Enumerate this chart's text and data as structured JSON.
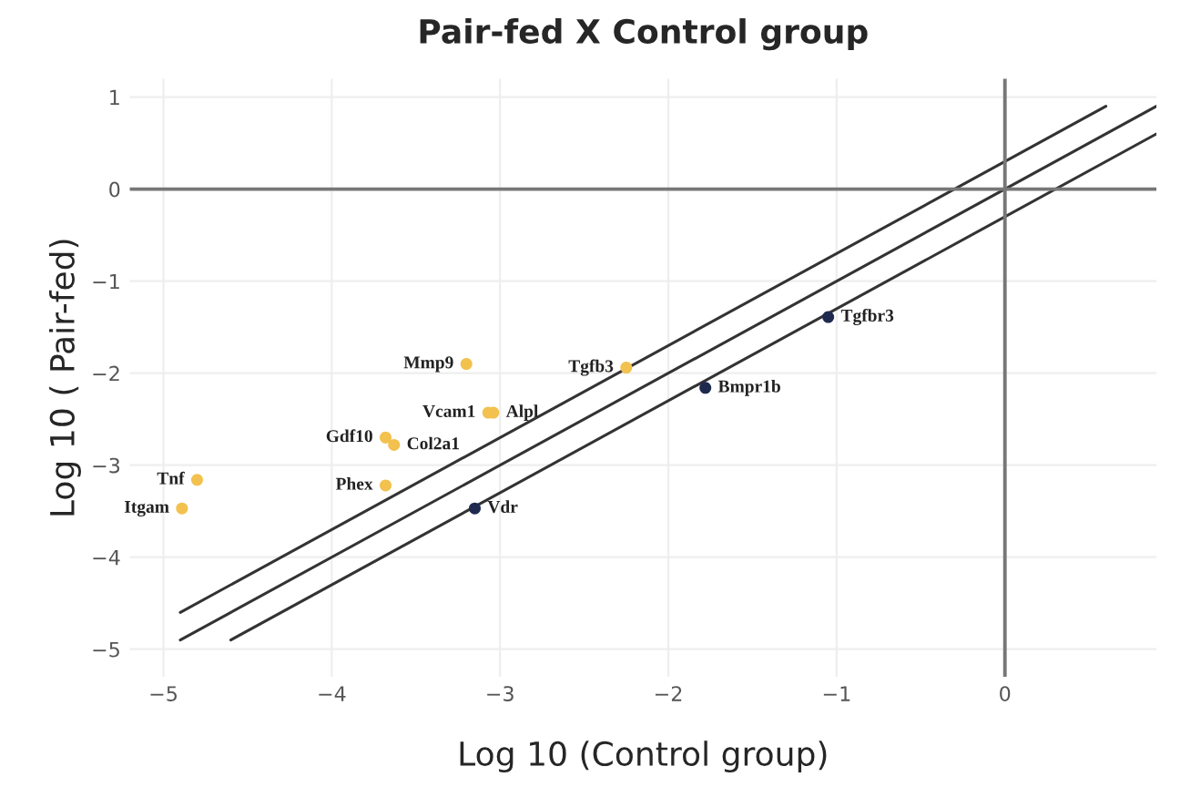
{
  "chart_data": {
    "type": "scatter",
    "title": "Pair-fed X Control group",
    "xlabel": "Log 10 (Control group)",
    "ylabel": "Log 10 ( Pair-fed)",
    "xlim": [
      -5.2,
      0.9
    ],
    "ylim": [
      -5.3,
      1.2
    ],
    "xticks": [
      -5,
      -4,
      -3,
      -2,
      -1,
      0
    ],
    "yticks": [
      -5,
      -4,
      -3,
      -2,
      -1,
      0,
      1
    ],
    "grid": true,
    "legend": false,
    "series": [
      {
        "color": "#f2c14e",
        "marker": "circle",
        "x": [
          -4.8,
          -4.89,
          -3.2,
          -2.25,
          -3.07,
          -3.04,
          -3.68,
          -3.63,
          -3.68
        ],
        "values": [
          -3.16,
          -3.47,
          -1.9,
          -1.94,
          -2.43,
          -2.43,
          -2.7,
          -2.78,
          -3.22
        ]
      },
      {
        "color": "#1f2a4f",
        "marker": "circle",
        "x": [
          -3.15,
          -1.78,
          -1.05
        ],
        "values": [
          -3.47,
          -2.16,
          -1.39
        ]
      },
      {
        "type": "line",
        "color": "#333333",
        "x": [
          -4.9,
          0.6
        ],
        "values": [
          -4.6,
          0.9
        ]
      },
      {
        "type": "line",
        "color": "#333333",
        "x": [
          -4.9,
          0.9
        ],
        "values": [
          -4.9,
          0.9
        ]
      },
      {
        "type": "line",
        "color": "#333333",
        "x": [
          -4.6,
          0.9
        ],
        "values": [
          -4.9,
          0.6
        ]
      }
    ],
    "annotations": [
      {
        "text": "Tnf",
        "x": -4.8,
        "y": -3.16
      },
      {
        "text": "Itgam",
        "x": -4.89,
        "y": -3.47
      },
      {
        "text": "Mmp9",
        "x": -3.2,
        "y": -1.9
      },
      {
        "text": "Tgfb3",
        "x": -2.25,
        "y": -1.94
      },
      {
        "text": "Vcam1",
        "x": -3.07,
        "y": -2.43
      },
      {
        "text": "Alpl",
        "x": -3.04,
        "y": -2.43
      },
      {
        "text": "Gdf10",
        "x": -3.68,
        "y": -2.7
      },
      {
        "text": "Col2a1",
        "x": -3.63,
        "y": -2.78
      },
      {
        "text": "Phex",
        "x": -3.68,
        "y": -3.22
      },
      {
        "text": "Vdr",
        "x": -3.15,
        "y": -3.47
      },
      {
        "text": "Bmpr1b",
        "x": -1.78,
        "y": -2.16
      },
      {
        "text": "Tgfbr3",
        "x": -1.05,
        "y": -1.39
      }
    ]
  }
}
